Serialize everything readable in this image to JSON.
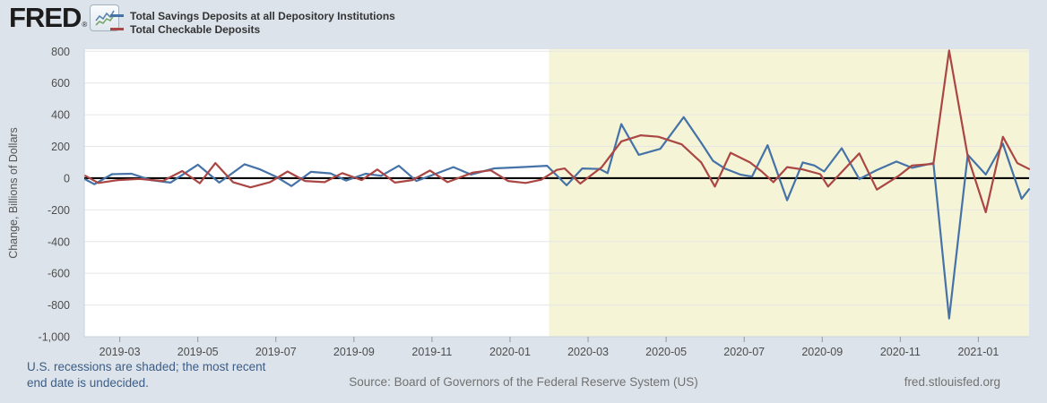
{
  "header": {
    "logo_text": "FRED",
    "logo_registered_mark": "®",
    "legend": [
      {
        "label": "Total Savings Deposits at all Depository Institutions",
        "color": "#4572a7"
      },
      {
        "label": "Total Checkable Deposits",
        "color": "#aa4643"
      }
    ]
  },
  "chart_data": {
    "type": "line",
    "title": "",
    "ylabel": "Change, Billions of Dollars",
    "xlabel": "",
    "ylim": [
      -1000,
      813
    ],
    "y_ticks": [
      800,
      600,
      400,
      200,
      0,
      -200,
      -400,
      -600,
      -800,
      -1000
    ],
    "y_tick_labels": [
      "800",
      "600",
      "400",
      "200",
      "0",
      "-200",
      "-400",
      "-600",
      "-800",
      "-1,000"
    ],
    "t_unit": "months since 2019-02-01",
    "xlim_t": [
      0.09,
      24.3
    ],
    "x_ticks": [
      {
        "t": 1,
        "label": "2019-03"
      },
      {
        "t": 3,
        "label": "2019-05"
      },
      {
        "t": 5,
        "label": "2019-07"
      },
      {
        "t": 7,
        "label": "2019-09"
      },
      {
        "t": 9,
        "label": "2019-11"
      },
      {
        "t": 11,
        "label": "2020-01"
      },
      {
        "t": 13,
        "label": "2020-03"
      },
      {
        "t": 15,
        "label": "2020-05"
      },
      {
        "t": 17,
        "label": "2020-07"
      },
      {
        "t": 19,
        "label": "2020-09"
      },
      {
        "t": 21,
        "label": "2020-11"
      },
      {
        "t": 23,
        "label": "2021-01"
      }
    ],
    "recession_band": {
      "start_t": 12,
      "end_t": 24.3,
      "start_label": "2020-02",
      "end_label": "undecided",
      "color": "#f5f4d7"
    },
    "grid_on": true,
    "grid_color": "#e6e6e6",
    "zero_line_color": "#000000",
    "plot_bg": "#ffffff",
    "axis_border_color": "#c9d3dc",
    "tick_color": "#8b98a4",
    "tick_label_color": "#4d4d4d",
    "series": [
      {
        "name": "Total Savings Deposits at all Depository Institutions",
        "color": "#4572a7",
        "points": [
          [
            0.12,
            -8
          ],
          [
            0.35,
            -38
          ],
          [
            0.8,
            25
          ],
          [
            1.3,
            28
          ],
          [
            1.8,
            -12
          ],
          [
            2.3,
            -28
          ],
          [
            3.0,
            85
          ],
          [
            3.55,
            -28
          ],
          [
            4.2,
            88
          ],
          [
            4.6,
            55
          ],
          [
            5.0,
            10
          ],
          [
            5.4,
            -50
          ],
          [
            5.9,
            40
          ],
          [
            6.4,
            30
          ],
          [
            6.8,
            -15
          ],
          [
            7.3,
            28
          ],
          [
            7.7,
            15
          ],
          [
            8.15,
            78
          ],
          [
            8.6,
            -18
          ],
          [
            9.1,
            28
          ],
          [
            9.55,
            70
          ],
          [
            10.0,
            23
          ],
          [
            10.6,
            62
          ],
          [
            11.3,
            70
          ],
          [
            11.95,
            78
          ],
          [
            12.45,
            -45
          ],
          [
            12.85,
            61
          ],
          [
            13.3,
            58
          ],
          [
            13.5,
            32
          ],
          [
            13.85,
            341
          ],
          [
            14.3,
            147
          ],
          [
            14.85,
            185
          ],
          [
            15.45,
            385
          ],
          [
            15.9,
            223
          ],
          [
            16.2,
            109
          ],
          [
            16.5,
            61
          ],
          [
            16.9,
            23
          ],
          [
            17.2,
            10
          ],
          [
            17.6,
            208
          ],
          [
            18.1,
            -139
          ],
          [
            18.5,
            99
          ],
          [
            18.8,
            80
          ],
          [
            19.05,
            42
          ],
          [
            19.5,
            189
          ],
          [
            19.95,
            -6
          ],
          [
            20.4,
            51
          ],
          [
            20.9,
            105
          ],
          [
            21.3,
            65
          ],
          [
            21.85,
            95
          ],
          [
            22.25,
            -885
          ],
          [
            22.73,
            147
          ],
          [
            23.19,
            23
          ],
          [
            23.63,
            217
          ],
          [
            24.11,
            -130
          ],
          [
            24.3,
            -70
          ]
        ]
      },
      {
        "name": "Total Checkable Deposits",
        "color": "#aa4643",
        "points": [
          [
            0.12,
            15
          ],
          [
            0.45,
            -30
          ],
          [
            0.95,
            -12
          ],
          [
            1.5,
            -5
          ],
          [
            2.1,
            -18
          ],
          [
            2.6,
            45
          ],
          [
            3.05,
            -32
          ],
          [
            3.45,
            95
          ],
          [
            3.9,
            -25
          ],
          [
            4.35,
            -58
          ],
          [
            4.85,
            -25
          ],
          [
            5.3,
            42
          ],
          [
            5.75,
            -18
          ],
          [
            6.25,
            -25
          ],
          [
            6.7,
            32
          ],
          [
            7.2,
            -12
          ],
          [
            7.6,
            55
          ],
          [
            8.05,
            -28
          ],
          [
            8.5,
            -12
          ],
          [
            8.95,
            48
          ],
          [
            9.4,
            -25
          ],
          [
            10.05,
            35
          ],
          [
            10.5,
            50
          ],
          [
            10.95,
            -18
          ],
          [
            11.4,
            -30
          ],
          [
            11.8,
            -10
          ],
          [
            12.2,
            52
          ],
          [
            12.4,
            61
          ],
          [
            12.8,
            -34
          ],
          [
            13.35,
            70
          ],
          [
            13.85,
            232
          ],
          [
            14.35,
            270
          ],
          [
            14.8,
            261
          ],
          [
            15.4,
            213
          ],
          [
            15.9,
            99
          ],
          [
            16.25,
            -53
          ],
          [
            16.65,
            160
          ],
          [
            17.15,
            99
          ],
          [
            17.45,
            42
          ],
          [
            17.75,
            -25
          ],
          [
            18.1,
            70
          ],
          [
            18.5,
            55
          ],
          [
            18.95,
            25
          ],
          [
            19.15,
            -53
          ],
          [
            19.95,
            156
          ],
          [
            20.4,
            -72
          ],
          [
            20.95,
            13
          ],
          [
            21.3,
            80
          ],
          [
            21.85,
            90
          ],
          [
            22.25,
            805
          ],
          [
            22.73,
            137
          ],
          [
            23.19,
            -215
          ],
          [
            23.63,
            261
          ],
          [
            24.0,
            95
          ],
          [
            24.3,
            58
          ]
        ]
      }
    ]
  },
  "footer": {
    "recession_note_line1": "U.S. recessions are shaded; the most recent",
    "recession_note_line2": "end date is undecided.",
    "source": "Source: Board of Governors of the Federal Reserve System (US)",
    "site": "fred.stlouisfed.org"
  }
}
